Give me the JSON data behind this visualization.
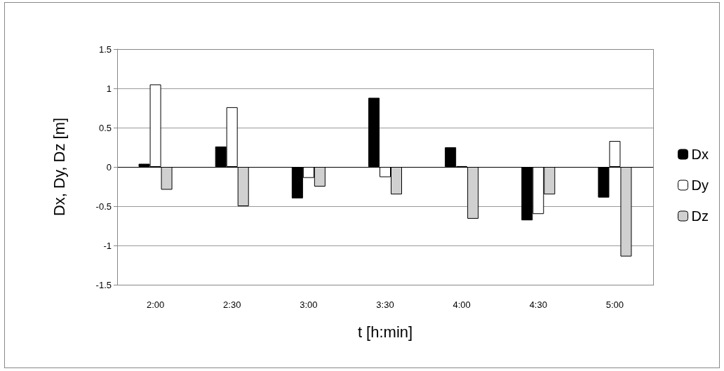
{
  "chart_data": {
    "type": "bar",
    "xlabel": "t [h:min]",
    "ylabel": "Dx, Dy, Dz [m]",
    "categories": [
      "2:00",
      "2:30",
      "3:00",
      "3:30",
      "4:00",
      "4:30",
      "5:00"
    ],
    "series": [
      {
        "name": "Dx",
        "color": "#000000",
        "values": [
          0.04,
          0.26,
          -0.4,
          0.88,
          0.25,
          -0.68,
          -0.39
        ]
      },
      {
        "name": "Dy",
        "color": "#ffffff",
        "values": [
          1.05,
          0.76,
          -0.14,
          -0.13,
          0.01,
          -0.6,
          0.33
        ]
      },
      {
        "name": "Dz",
        "color": "#d0d0d0",
        "values": [
          -0.29,
          -0.5,
          -0.25,
          -0.35,
          -0.66,
          -0.35,
          -1.14
        ]
      }
    ],
    "ylim": [
      -1.5,
      1.5
    ],
    "yticks": [
      -1.5,
      -1,
      -0.5,
      0,
      0.5,
      1,
      1.5
    ],
    "grid": "y",
    "legend": "right"
  }
}
